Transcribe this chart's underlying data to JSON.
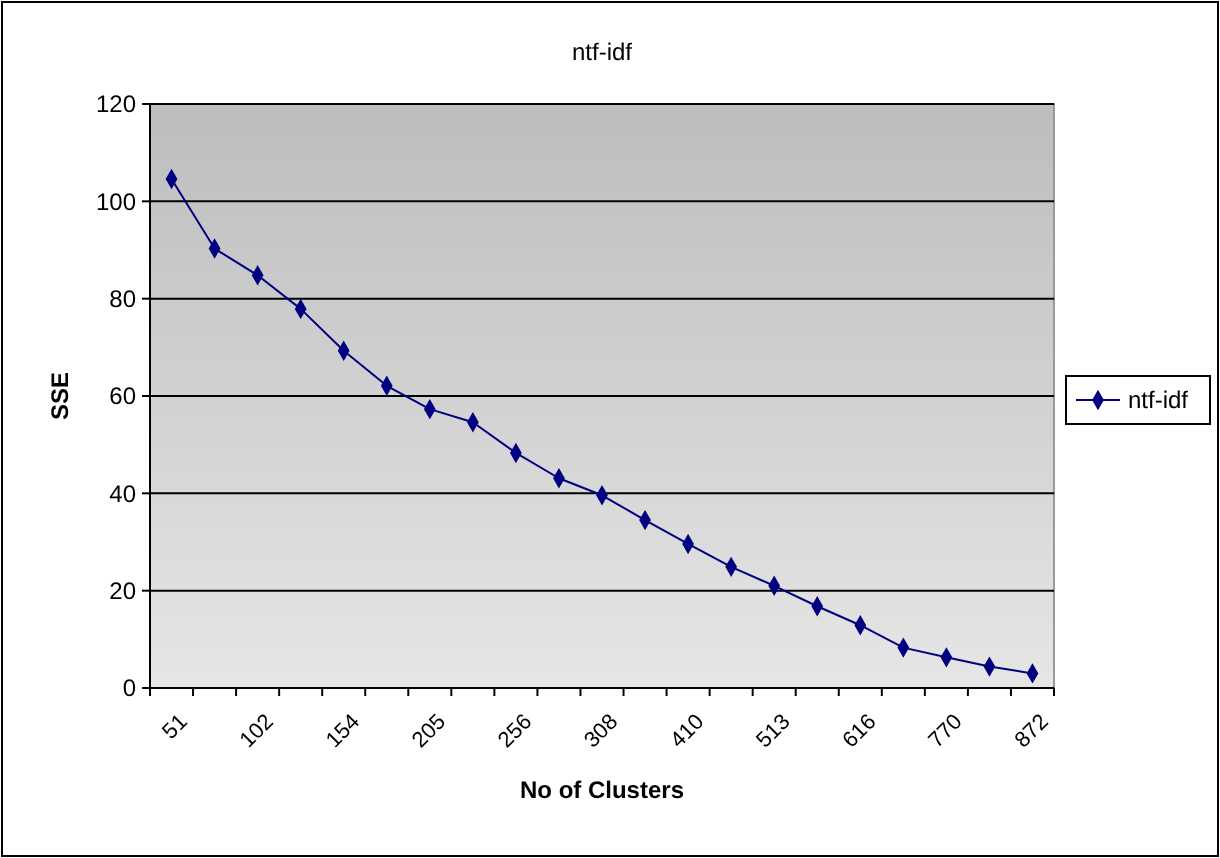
{
  "chart_data": {
    "type": "line",
    "title": "ntf-idf",
    "xlabel": "No of Clusters",
    "ylabel": "SSE",
    "categories": [
      "51",
      null,
      "102",
      null,
      "154",
      null,
      "205",
      null,
      "256",
      null,
      "308",
      null,
      "410",
      null,
      "513",
      null,
      "616",
      null,
      "770",
      null,
      "872"
    ],
    "series": [
      {
        "name": "ntf-idf",
        "color": "#000080",
        "values": [
          104.6,
          90.3,
          84.8,
          77.9,
          69.3,
          62.1,
          57.3,
          54.6,
          48.3,
          43.1,
          39.6,
          34.5,
          29.6,
          24.9,
          21,
          16.8,
          12.9,
          8.3,
          6.3,
          4.4,
          3.0
        ]
      }
    ],
    "ylim": [
      0,
      120
    ],
    "yticks": [
      0,
      20,
      40,
      60,
      80,
      100,
      120
    ],
    "grid": "y",
    "legend": "right",
    "marker": "diamond",
    "line_style": "solid"
  }
}
